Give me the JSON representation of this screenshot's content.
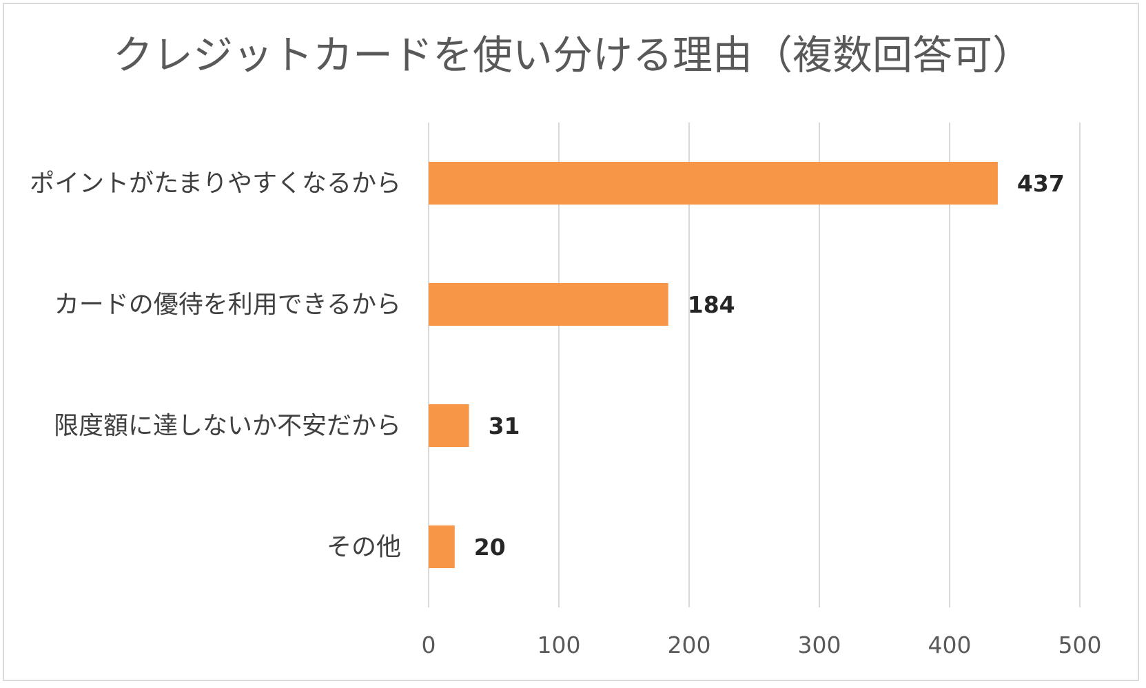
{
  "chart_data": {
    "type": "bar",
    "orientation": "horizontal",
    "title": "クレジットカードを使い分ける理由（複数回答可）",
    "categories": [
      "ポイントがたまりやすくなるから",
      "カードの優待を利用できるから",
      "限度額に達しないか不安だから",
      "その他"
    ],
    "values": [
      437,
      184,
      31,
      20
    ],
    "xlim": [
      0,
      500
    ],
    "xticks": [
      0,
      100,
      200,
      300,
      400,
      500
    ],
    "grid": true,
    "bar_color": "#f79646",
    "legend": "none"
  }
}
